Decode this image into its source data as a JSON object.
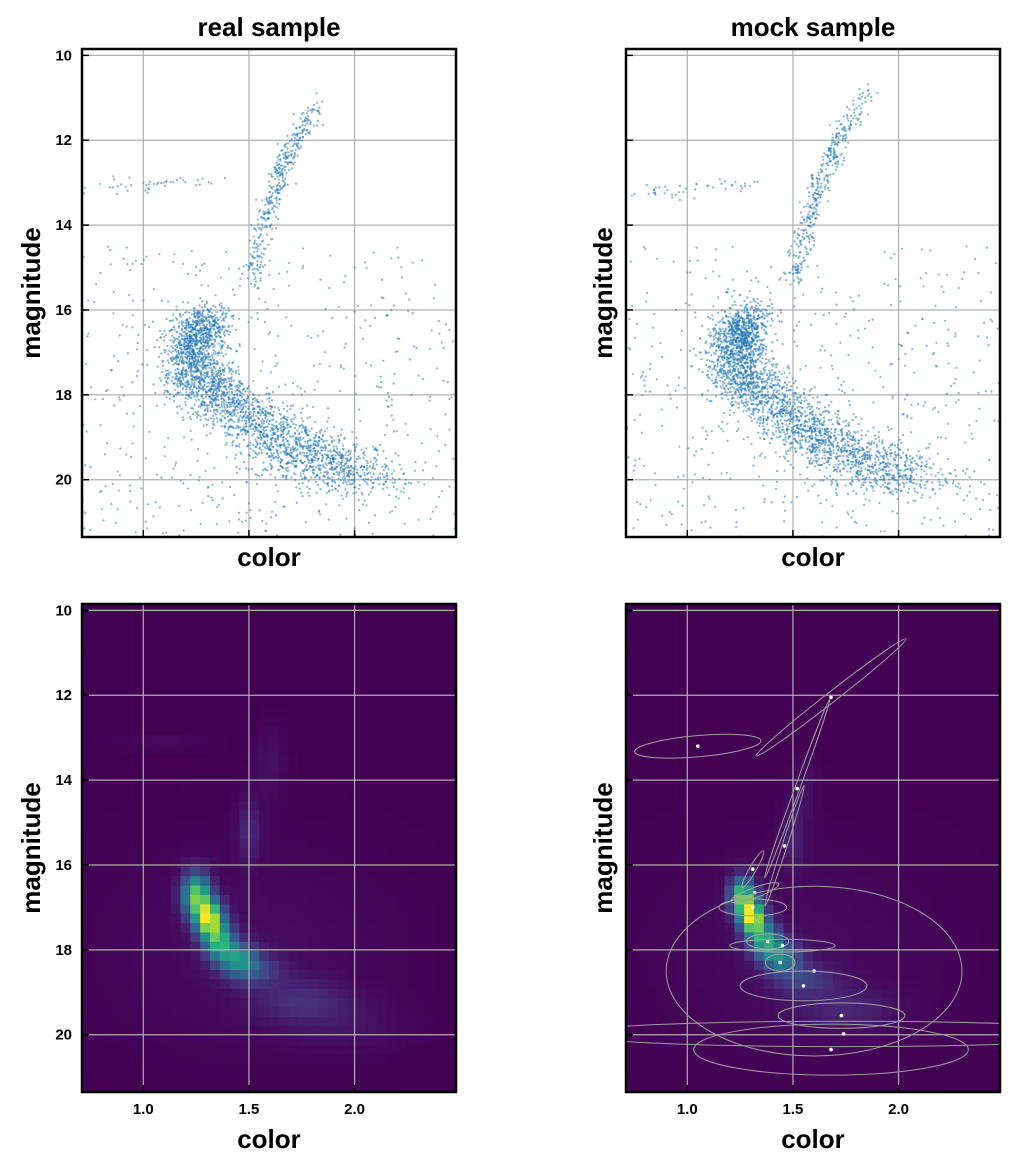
{
  "chart_data": [
    {
      "type": "scatter",
      "title": "real sample",
      "xlabel": "color",
      "ylabel": "magnitude",
      "xlim": [
        0.71,
        2.48
      ],
      "ylim": [
        21.35,
        9.85
      ],
      "y_inverted": true,
      "xticks": [
        1.0,
        1.5,
        2.0
      ],
      "xtick_labels_visible": false,
      "yticks": [
        10,
        12,
        14,
        16,
        18,
        20
      ],
      "ytick_labels": [
        "10",
        "12",
        "14",
        "16",
        "18",
        "20"
      ],
      "grid": true,
      "point_color": "#1f77b4",
      "structures": [
        {
          "name": "main sequence ridge",
          "x": [
            1.3,
            1.22,
            1.24,
            1.33,
            1.45,
            1.6,
            1.75,
            1.9,
            2.05
          ],
          "y": [
            16.2,
            16.8,
            17.4,
            17.9,
            18.4,
            18.9,
            19.3,
            19.7,
            20.1
          ]
        },
        {
          "name": "red giant branch",
          "x": [
            1.52,
            1.55,
            1.6,
            1.65,
            1.72,
            1.82
          ],
          "y": [
            15.3,
            14.4,
            13.5,
            12.7,
            12.0,
            11.2
          ]
        },
        {
          "name": "horizontal branch",
          "x": [
            0.75,
            1.0,
            1.3
          ],
          "y": [
            13.1,
            13.05,
            12.95
          ]
        }
      ]
    },
    {
      "type": "scatter",
      "title": "mock sample",
      "xlabel": "color",
      "ylabel": "magnitude",
      "xlim": [
        0.71,
        2.48
      ],
      "ylim": [
        21.35,
        9.85
      ],
      "y_inverted": true,
      "xticks": [
        1.0,
        1.5,
        2.0
      ],
      "xtick_labels_visible": false,
      "yticks": [
        10,
        12,
        14,
        16,
        18,
        20
      ],
      "ytick_labels_visible": false,
      "grid": true,
      "point_color": "#1f77b4",
      "structures": [
        {
          "name": "main sequence ridge",
          "x": [
            1.3,
            1.22,
            1.24,
            1.33,
            1.45,
            1.6,
            1.75,
            1.9,
            2.05
          ],
          "y": [
            16.2,
            16.8,
            17.4,
            17.9,
            18.4,
            18.9,
            19.3,
            19.7,
            20.1
          ]
        },
        {
          "name": "red giant branch",
          "x": [
            1.5,
            1.55,
            1.6,
            1.65,
            1.72,
            1.85
          ],
          "y": [
            15.3,
            14.4,
            13.5,
            12.7,
            11.9,
            10.9
          ]
        },
        {
          "name": "horizontal branch",
          "x": [
            0.75,
            1.0,
            1.3
          ],
          "y": [
            13.3,
            13.2,
            13.0
          ]
        }
      ]
    },
    {
      "type": "heatmap",
      "xlabel": "color",
      "ylabel": "magnitude",
      "xlim": [
        0.71,
        2.48
      ],
      "ylim": [
        21.35,
        9.85
      ],
      "y_inverted": true,
      "xticks": [
        1.0,
        1.5,
        2.0
      ],
      "xtick_labels": [
        "1.0",
        "1.5",
        "2.0"
      ],
      "yticks": [
        10,
        12,
        14,
        16,
        18,
        20
      ],
      "ytick_labels": [
        "10",
        "12",
        "14",
        "16",
        "18",
        "20"
      ],
      "grid": true,
      "colormap": [
        "#440154",
        "#472c7a",
        "#3b518b",
        "#2c718e",
        "#21908d",
        "#27ad81",
        "#5cc863",
        "#aadc32",
        "#fde725"
      ],
      "density_components": [
        {
          "x": 1.25,
          "y": 16.7,
          "sx": 0.045,
          "sy": 0.35,
          "w": 0.75
        },
        {
          "x": 1.31,
          "y": 17.25,
          "sx": 0.045,
          "sy": 0.3,
          "w": 0.9
        },
        {
          "x": 1.36,
          "y": 17.8,
          "sx": 0.05,
          "sy": 0.3,
          "w": 0.6
        },
        {
          "x": 1.45,
          "y": 18.2,
          "sx": 0.06,
          "sy": 0.25,
          "w": 0.45
        },
        {
          "x": 1.52,
          "y": 18.5,
          "sx": 0.09,
          "sy": 0.25,
          "w": 0.22
        },
        {
          "x": 1.75,
          "y": 19.2,
          "sx": 0.15,
          "sy": 0.35,
          "w": 0.12
        },
        {
          "x": 1.95,
          "y": 19.8,
          "sx": 0.2,
          "sy": 0.4,
          "w": 0.05
        },
        {
          "x": 1.5,
          "y": 15.2,
          "sx": 0.04,
          "sy": 0.5,
          "w": 0.12
        },
        {
          "x": 1.6,
          "y": 13.6,
          "sx": 0.05,
          "sy": 0.6,
          "w": 0.05
        },
        {
          "x": 1.1,
          "y": 13.1,
          "sx": 0.15,
          "sy": 0.12,
          "w": 0.03
        },
        {
          "x": 1.5,
          "y": 18.0,
          "sx": 0.45,
          "sy": 1.6,
          "w": 0.035
        }
      ]
    },
    {
      "type": "heatmap",
      "xlabel": "color",
      "ylabel": "magnitude",
      "xlim": [
        0.71,
        2.48
      ],
      "ylim": [
        21.35,
        9.85
      ],
      "y_inverted": true,
      "xticks": [
        1.0,
        1.5,
        2.0
      ],
      "xtick_labels": [
        "1.0",
        "1.5",
        "2.0"
      ],
      "yticks": [
        10,
        12,
        14,
        16,
        18,
        20
      ],
      "ytick_labels_visible": false,
      "grid": true,
      "colormap": [
        "#440154",
        "#472c7a",
        "#3b518b",
        "#2c718e",
        "#21908d",
        "#27ad81",
        "#5cc863",
        "#aadc32",
        "#fde725"
      ],
      "density_components": [
        {
          "x": 1.26,
          "y": 16.75,
          "sx": 0.04,
          "sy": 0.3,
          "w": 0.75
        },
        {
          "x": 1.31,
          "y": 17.25,
          "sx": 0.04,
          "sy": 0.28,
          "w": 0.9
        },
        {
          "x": 1.37,
          "y": 17.8,
          "sx": 0.05,
          "sy": 0.28,
          "w": 0.55
        },
        {
          "x": 1.45,
          "y": 18.2,
          "sx": 0.06,
          "sy": 0.25,
          "w": 0.4
        },
        {
          "x": 1.55,
          "y": 18.7,
          "sx": 0.1,
          "sy": 0.25,
          "w": 0.18
        },
        {
          "x": 1.75,
          "y": 19.4,
          "sx": 0.16,
          "sy": 0.35,
          "w": 0.1
        },
        {
          "x": 1.5,
          "y": 15.4,
          "sx": 0.04,
          "sy": 0.5,
          "w": 0.1
        },
        {
          "x": 1.56,
          "y": 14.2,
          "sx": 0.04,
          "sy": 0.5,
          "w": 0.05
        },
        {
          "x": 1.5,
          "y": 18.0,
          "sx": 0.45,
          "sy": 1.6,
          "w": 0.03
        }
      ],
      "gmm_components": [
        {
          "x": 1.05,
          "y": 13.2,
          "rx": 0.3,
          "ry": 0.25,
          "angle": -5
        },
        {
          "x": 1.68,
          "y": 12.05,
          "rx": 0.45,
          "ry": 0.12,
          "angle": -38
        },
        {
          "x": 1.52,
          "y": 14.2,
          "rx": 0.45,
          "ry": 0.06,
          "angle": -70
        },
        {
          "x": 1.46,
          "y": 15.55,
          "rx": 0.3,
          "ry": 0.06,
          "angle": -72
        },
        {
          "x": 1.31,
          "y": 16.1,
          "rx": 0.1,
          "ry": 0.08,
          "angle": -60
        },
        {
          "x": 1.32,
          "y": 16.65,
          "rx": 0.12,
          "ry": 0.12,
          "angle": -20
        },
        {
          "x": 1.31,
          "y": 17.0,
          "rx": 0.16,
          "ry": 0.2,
          "angle": 0
        },
        {
          "x": 1.38,
          "y": 17.8,
          "rx": 0.1,
          "ry": 0.18,
          "angle": 0
        },
        {
          "x": 1.45,
          "y": 17.9,
          "rx": 0.25,
          "ry": 0.15,
          "angle": 0
        },
        {
          "x": 1.44,
          "y": 18.3,
          "rx": 0.07,
          "ry": 0.2,
          "angle": 0
        },
        {
          "x": 1.6,
          "y": 18.5,
          "rx": 0.7,
          "ry": 2.0,
          "angle": 0
        },
        {
          "x": 1.55,
          "y": 18.85,
          "rx": 0.3,
          "ry": 0.35,
          "angle": 0
        },
        {
          "x": 1.73,
          "y": 19.55,
          "rx": 0.3,
          "ry": 0.3,
          "angle": 0
        },
        {
          "x": 1.74,
          "y": 19.98,
          "rx": 1.3,
          "ry": 0.3,
          "angle": 0
        },
        {
          "x": 1.68,
          "y": 20.35,
          "rx": 0.65,
          "ry": 0.6,
          "angle": 0
        }
      ],
      "gmm_ellipse_color": "#a0a0a0",
      "gmm_center_color": "#ffffff"
    }
  ]
}
